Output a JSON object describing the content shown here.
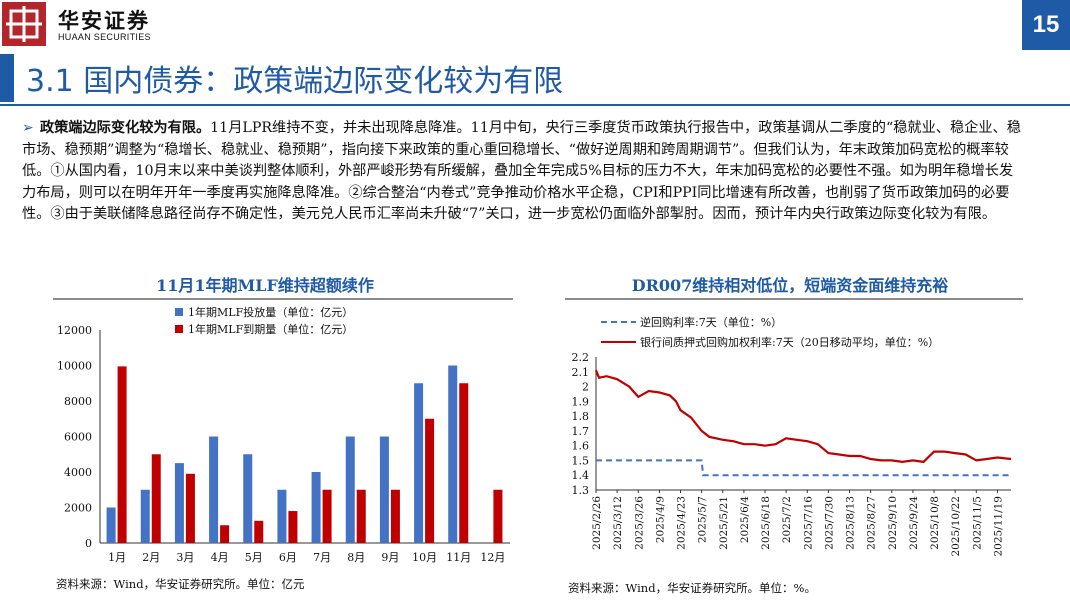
{
  "header": {
    "logo_cn": "华安证券",
    "logo_en": "HUAAN SECURITIES",
    "page_number": "15"
  },
  "title": "3.1 国内债券：政策端边际变化较为有限",
  "paragraph": {
    "bold_lead": "政策端边际变化较为有限。",
    "body": "11月LPR维持不变，并未出现降息降准。11月中旬，央行三季度货币政策执行报告中，政策基调从二季度的“稳就业、稳企业、稳市场、稳预期”调整为“稳增长、稳就业、稳预期”，指向接下来政策的重心重回稳增长、“做好逆周期和跨周期调节”。但我们认为，年末政策加码宽松的概率较低。①从国内看，10月末以来中美谈判整体顺利，外部严峻形势有所缓解，叠加全年完成5%目标的压力不大，年末加码宽松的必要性不强。如为明年稳增长发力布局，则可以在明年开年一季度再实施降息降准。②综合整治“内卷式”竞争推动价格水平企稳，CPI和PPI同比增速有所改善，也削弱了货币政策加码的必要性。③由于美联储降息路径尚存不确定性，美元兑人民币汇率尚未升破“7”关口，进一步宽松仍面临外部掣肘。因而，预计年内央行政策边际变化较为有限。"
  },
  "left_chart": {
    "title": "11月1年期MLF维持超额续作",
    "source": "资料来源：Wind，华安证券研究所。单位：亿元"
  },
  "right_chart": {
    "title": "DR007维持相对低位，短端资金面维持充裕",
    "source": "资料来源：Wind，华安证券研究所。单位：%。"
  },
  "chart_data": [
    {
      "type": "bar",
      "categories": [
        "1月",
        "2月",
        "3月",
        "4月",
        "5月",
        "6月",
        "7月",
        "8月",
        "9月",
        "10月",
        "11月",
        "12月"
      ],
      "series": [
        {
          "name": "1年期MLF投放量（单位：亿元）",
          "color": "#4472c4",
          "values": [
            2000,
            3000,
            4500,
            6000,
            5000,
            3000,
            4000,
            6000,
            6000,
            9000,
            10000,
            null
          ]
        },
        {
          "name": "1年期MLF到期量（单位：亿元）",
          "color": "#c00000",
          "values": [
            9950,
            5000,
            3900,
            1000,
            1250,
            1800,
            3000,
            3000,
            3000,
            7000,
            9000,
            3000
          ]
        }
      ],
      "yticks": [
        "0",
        "2000",
        "4000",
        "6000",
        "8000",
        "10000",
        "12000"
      ],
      "ylim": [
        0,
        12000
      ]
    },
    {
      "type": "line",
      "x_ticks": [
        "2025/2/26",
        "2025/3/12",
        "2025/3/26",
        "2025/4/9",
        "2025/4/23",
        "2025/5/7",
        "2025/5/21",
        "2025/6/4",
        "2025/6/18",
        "2025/7/2",
        "2025/7/16",
        "2025/7/30",
        "2025/8/13",
        "2025/8/27",
        "2025/9/10",
        "2025/9/24",
        "2025/10/8",
        "2025/10/22",
        "2025/11/5",
        "2025/11/19"
      ],
      "yticks": [
        "1.3",
        "1.4",
        "1.5",
        "1.6",
        "1.7",
        "1.8",
        "1.9",
        "2",
        "2.1",
        "2.2"
      ],
      "ylim": [
        1.3,
        2.2
      ],
      "series": [
        {
          "name": "逆回购利率:7天（单位：%）",
          "color": "#4472c4",
          "dashed": true,
          "x": [
            "2025/2/26",
            "2025/5/7",
            "2025/5/8",
            "2025/11/28"
          ],
          "values": [
            1.5,
            1.5,
            1.4,
            1.4
          ]
        },
        {
          "name": "银行间质押式回购加权利率:7天（20日移动平均，单位：%）",
          "color": "#c00000",
          "dashed": false,
          "x": [
            "2025/2/26",
            "2025/2/28",
            "2025/3/5",
            "2025/3/12",
            "2025/3/20",
            "2025/3/26",
            "2025/4/2",
            "2025/4/9",
            "2025/4/16",
            "2025/4/20",
            "2025/4/23",
            "2025/4/30",
            "2025/5/7",
            "2025/5/12",
            "2025/5/21",
            "2025/5/28",
            "2025/6/4",
            "2025/6/11",
            "2025/6/18",
            "2025/6/25",
            "2025/7/2",
            "2025/7/9",
            "2025/7/16",
            "2025/7/23",
            "2025/7/30",
            "2025/8/6",
            "2025/8/13",
            "2025/8/20",
            "2025/8/27",
            "2025/9/3",
            "2025/9/10",
            "2025/9/17",
            "2025/9/24",
            "2025/10/1",
            "2025/10/8",
            "2025/10/15",
            "2025/10/22",
            "2025/10/29",
            "2025/11/5",
            "2025/11/12",
            "2025/11/19",
            "2025/11/28"
          ],
          "values": [
            2.11,
            2.06,
            2.07,
            2.05,
            2.0,
            1.93,
            1.97,
            1.96,
            1.94,
            1.9,
            1.84,
            1.79,
            1.7,
            1.66,
            1.64,
            1.63,
            1.61,
            1.61,
            1.6,
            1.61,
            1.65,
            1.64,
            1.63,
            1.61,
            1.55,
            1.54,
            1.53,
            1.53,
            1.51,
            1.5,
            1.5,
            1.49,
            1.5,
            1.49,
            1.56,
            1.56,
            1.55,
            1.54,
            1.5,
            1.51,
            1.52,
            1.51
          ]
        }
      ]
    }
  ]
}
